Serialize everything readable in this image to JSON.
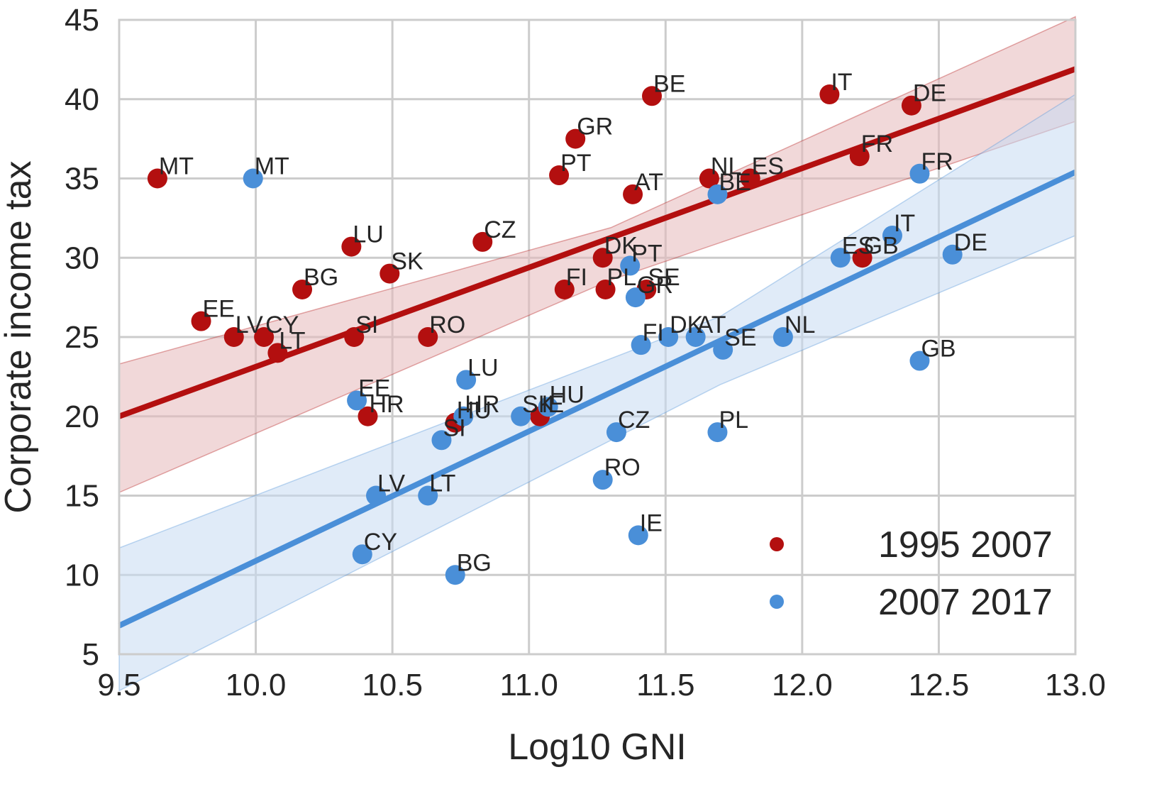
{
  "chart_data": {
    "type": "scatter",
    "title": "",
    "xlabel": "Log10 GNI",
    "ylabel": "Corporate income tax",
    "xlim": [
      9.5,
      13.0
    ],
    "ylim": [
      5,
      45
    ],
    "xticks": [
      "9.5",
      "10.0",
      "10.5",
      "11.0",
      "11.5",
      "12.0",
      "12.5",
      "13.0"
    ],
    "yticks": [
      "5",
      "10",
      "15",
      "20",
      "25",
      "30",
      "35",
      "40",
      "45"
    ],
    "grid": true,
    "legend_position": "bottom-right",
    "series": [
      {
        "name": "1995 2007",
        "color": "#b30f0f",
        "band_color": "#e6b8ba",
        "fit": {
          "x": [
            9.5,
            13.0
          ],
          "y": [
            20.0,
            41.9
          ]
        },
        "band": {
          "x": [
            9.5,
            11.3,
            13.0
          ],
          "upper": [
            23.3,
            31.9,
            45.2
          ],
          "lower": [
            15.2,
            28.6,
            38.6
          ]
        },
        "points": [
          {
            "label": "MT",
            "x": 9.64,
            "y": 35.0
          },
          {
            "label": "EE",
            "x": 9.8,
            "y": 26.0
          },
          {
            "label": "LV",
            "x": 9.92,
            "y": 25.0
          },
          {
            "label": "CY",
            "x": 10.03,
            "y": 25.0
          },
          {
            "label": "LT",
            "x": 10.08,
            "y": 24.0
          },
          {
            "label": "BG",
            "x": 10.17,
            "y": 28.0
          },
          {
            "label": "LU",
            "x": 10.35,
            "y": 30.7
          },
          {
            "label": "SI",
            "x": 10.36,
            "y": 25.0
          },
          {
            "label": "HR",
            "x": 10.41,
            "y": 20.0
          },
          {
            "label": "SK",
            "x": 10.49,
            "y": 29.0
          },
          {
            "label": "RO",
            "x": 10.63,
            "y": 25.0
          },
          {
            "label": "HU",
            "x": 10.73,
            "y": 19.6
          },
          {
            "label": "CZ",
            "x": 10.83,
            "y": 31.0
          },
          {
            "label": "IE",
            "x": 11.04,
            "y": 20.0
          },
          {
            "label": "PT",
            "x": 11.11,
            "y": 35.2
          },
          {
            "label": "FI",
            "x": 11.13,
            "y": 28.0
          },
          {
            "label": "GR",
            "x": 11.17,
            "y": 37.5
          },
          {
            "label": "DK",
            "x": 11.27,
            "y": 30.0
          },
          {
            "label": "PL",
            "x": 11.28,
            "y": 28.0
          },
          {
            "label": "AT",
            "x": 11.38,
            "y": 34.0
          },
          {
            "label": "SE",
            "x": 11.43,
            "y": 28.0
          },
          {
            "label": "BE",
            "x": 11.45,
            "y": 40.2
          },
          {
            "label": "NL",
            "x": 11.66,
            "y": 35.0
          },
          {
            "label": "ES",
            "x": 11.81,
            "y": 35.0
          },
          {
            "label": "IT",
            "x": 12.1,
            "y": 40.3
          },
          {
            "label": "FR",
            "x": 12.21,
            "y": 36.4
          },
          {
            "label": "GB",
            "x": 12.22,
            "y": 30.0
          },
          {
            "label": "DE",
            "x": 12.4,
            "y": 39.6
          }
        ]
      },
      {
        "name": "2007 2017",
        "color": "#4a8fd8",
        "band_color": "#c7dbf2",
        "fit": {
          "x": [
            9.5,
            13.0
          ],
          "y": [
            6.8,
            35.4
          ]
        },
        "band": {
          "x": [
            9.5,
            11.7,
            13.0
          ],
          "upper": [
            11.7,
            26.3,
            40.3
          ],
          "lower": [
            2.7,
            22.0,
            31.4
          ]
        },
        "points": [
          {
            "label": "MT",
            "x": 9.99,
            "y": 35.0
          },
          {
            "label": "EE",
            "x": 10.37,
            "y": 21.0
          },
          {
            "label": "CY",
            "x": 10.39,
            "y": 11.3
          },
          {
            "label": "LV",
            "x": 10.44,
            "y": 15.0
          },
          {
            "label": "LT",
            "x": 10.63,
            "y": 15.0
          },
          {
            "label": "SI",
            "x": 10.68,
            "y": 18.5
          },
          {
            "label": "BG",
            "x": 10.73,
            "y": 10.0
          },
          {
            "label": "HR",
            "x": 10.76,
            "y": 20.0
          },
          {
            "label": "LU",
            "x": 10.77,
            "y": 22.3
          },
          {
            "label": "SK",
            "x": 10.97,
            "y": 20.0
          },
          {
            "label": "HU",
            "x": 11.07,
            "y": 20.6
          },
          {
            "label": "RO",
            "x": 11.27,
            "y": 16.0
          },
          {
            "label": "CZ",
            "x": 11.32,
            "y": 19.0
          },
          {
            "label": "PT",
            "x": 11.37,
            "y": 29.5
          },
          {
            "label": "GR",
            "x": 11.39,
            "y": 27.5
          },
          {
            "label": "IE",
            "x": 11.4,
            "y": 12.5
          },
          {
            "label": "FI",
            "x": 11.41,
            "y": 24.5
          },
          {
            "label": "DK",
            "x": 11.51,
            "y": 25.0
          },
          {
            "label": "AT",
            "x": 11.61,
            "y": 25.0
          },
          {
            "label": "BE",
            "x": 11.69,
            "y": 34.0
          },
          {
            "label": "PL",
            "x": 11.69,
            "y": 19.0
          },
          {
            "label": "SE",
            "x": 11.71,
            "y": 24.2
          },
          {
            "label": "NL",
            "x": 11.93,
            "y": 25.0
          },
          {
            "label": "ES",
            "x": 12.14,
            "y": 30.0
          },
          {
            "label": "IT",
            "x": 12.33,
            "y": 31.4
          },
          {
            "label": "GB",
            "x": 12.43,
            "y": 23.5
          },
          {
            "label": "FR",
            "x": 12.43,
            "y": 35.3
          },
          {
            "label": "DE",
            "x": 12.55,
            "y": 30.2
          }
        ]
      }
    ]
  }
}
